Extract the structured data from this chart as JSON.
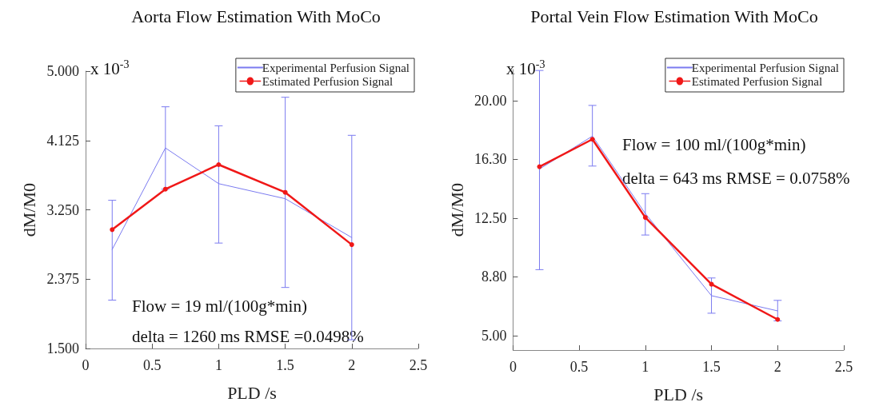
{
  "chart_data": [
    {
      "type": "line",
      "title": "Aorta Flow Estimation With MoCo",
      "xlabel": "PLD /s",
      "ylabel": "dM/M0",
      "x": [
        0.2,
        0.6,
        1.0,
        1.5,
        2.0
      ],
      "series": [
        {
          "name": "Experimental Perfusion Signal",
          "color": "#7b7bf0",
          "marker": "none",
          "values": [
            2.75,
            4.03,
            3.58,
            3.39,
            2.9
          ],
          "errors": [
            [
              2.11,
              3.37
            ],
            [
              3.51,
              4.55
            ],
            [
              2.83,
              4.31
            ],
            [
              2.27,
              4.67
            ],
            [
              1.61,
              4.19
            ]
          ]
        },
        {
          "name": "Estimated Perfusion Signal",
          "color": "#f01818",
          "marker": "circle",
          "values": [
            3.0,
            3.51,
            3.82,
            3.47,
            2.81
          ]
        }
      ],
      "xlim": [
        0,
        2.5
      ],
      "xticks": [
        0,
        0.5,
        1,
        1.5,
        2,
        2.5
      ],
      "ylim": [
        1.5,
        5.0
      ],
      "yticks": [
        {
          "value": 1.5,
          "label": "1.500"
        },
        {
          "value": 2.375,
          "label": "2.375"
        },
        {
          "value": 3.25,
          "label": "3.250"
        },
        {
          "value": 4.125,
          "label": "4.125"
        },
        {
          "value": 5.0,
          "label": "5.000"
        }
      ],
      "annotations": [
        "x 10$^{-3}$",
        "Flow = 19 ml/(100g*min)",
        "delta = 1260 ms RMSE =0.0498%"
      ],
      "legend": "top right",
      "grid": false,
      "line_style": "solid"
    },
    {
      "type": "line",
      "title": "Portal Vein Flow Estimation With MoCo",
      "xlabel": "PLD /s",
      "ylabel": "dM/M0",
      "x": [
        0.2,
        0.6,
        1.0,
        1.5,
        2.0
      ],
      "series": [
        {
          "name": "Experimental Perfusion Signal",
          "color": "#7b7bf0",
          "marker": "none",
          "values": [
            15.65,
            17.75,
            12.81,
            7.57,
            6.6
          ],
          "errors": [
            [
              9.23,
              21.94
            ],
            [
              15.84,
              19.71
            ],
            [
              11.44,
              14.08
            ],
            [
              6.45,
              8.7
            ],
            [
              5.96,
              7.27
            ]
          ]
        },
        {
          "name": "Estimated Perfusion Signal",
          "color": "#f01818",
          "marker": "circle",
          "values": [
            15.8,
            17.55,
            12.56,
            8.3,
            6.05
          ]
        }
      ],
      "xlim": [
        0,
        2.5
      ],
      "xticks": [
        0,
        0.5,
        1,
        1.5,
        2,
        2.5
      ],
      "ylim": [
        4.1,
        22
      ],
      "yticks": [
        {
          "value": 5,
          "label": "5.00"
        },
        {
          "value": 8.8,
          "label": "8.80"
        },
        {
          "value": 12.5,
          "label": "12.50"
        },
        {
          "value": 16.3,
          "label": "16.30"
        },
        {
          "value": 20,
          "label": "20.00"
        }
      ],
      "annotations": [
        "x 10$^{-3}$",
        "Flow = 100 ml/(100g*min)",
        "delta = 643 ms RMSE = 0.0758%"
      ],
      "legend": "top right",
      "grid": false,
      "line_style": "solid"
    }
  ]
}
